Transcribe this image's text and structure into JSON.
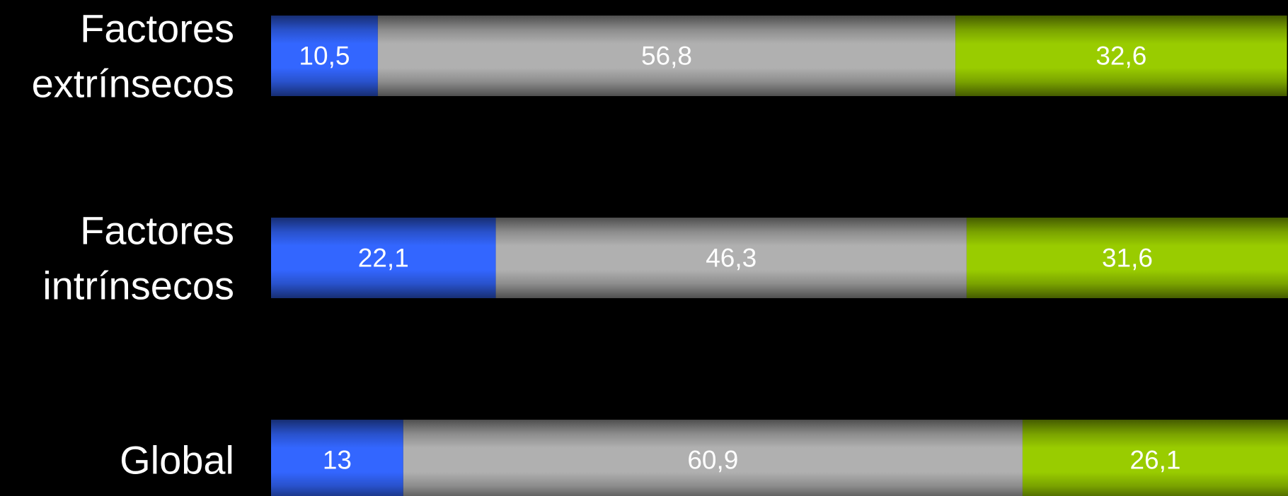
{
  "chart_data": {
    "type": "bar",
    "orientation": "horizontal",
    "stacked": true,
    "normalized_percent": true,
    "categories": [
      [
        "Factores",
        "extrínsecos"
      ],
      [
        "Factores",
        "intrínsecos"
      ],
      [
        "Global"
      ]
    ],
    "series": [
      {
        "color": "#3366ff",
        "values": [
          10.5,
          22.1,
          13
        ]
      },
      {
        "color": "#b0b0b0",
        "values": [
          56.8,
          46.3,
          60.9
        ]
      },
      {
        "color": "#99cc00",
        "values": [
          32.6,
          31.6,
          26.1
        ]
      }
    ],
    "data_labels": [
      [
        "10,5",
        "56,8",
        "32,6"
      ],
      [
        "22,1",
        "46,3",
        "31,6"
      ],
      [
        "13",
        "60,9",
        "26,1"
      ]
    ],
    "xlim": [
      0,
      100
    ],
    "grid": false,
    "legend": "none"
  }
}
